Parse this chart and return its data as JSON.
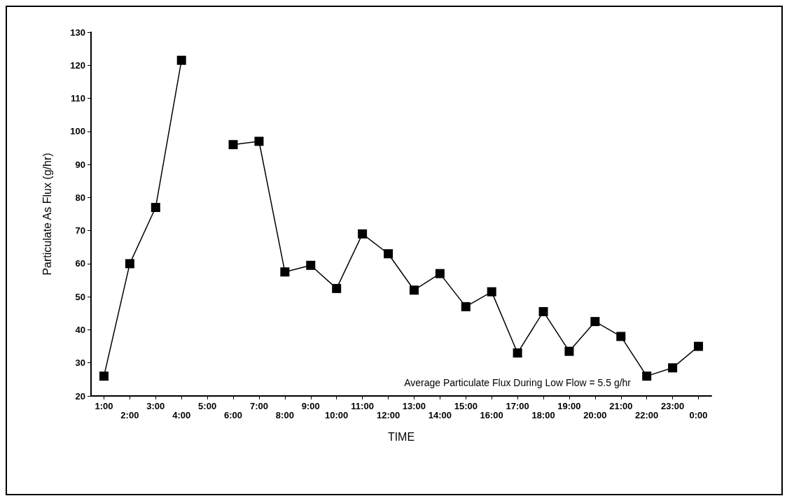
{
  "chart_data": {
    "type": "line",
    "xlabel": "TIME",
    "ylabel": "Particulate As Flux (g/hr)",
    "categories": [
      "1:00",
      "2:00",
      "3:00",
      "4:00",
      "5:00",
      "6:00",
      "7:00",
      "8:00",
      "9:00",
      "10:00",
      "11:00",
      "12:00",
      "13:00",
      "14:00",
      "15:00",
      "16:00",
      "17:00",
      "18:00",
      "19:00",
      "20:00",
      "21:00",
      "22:00",
      "23:00",
      "0:00"
    ],
    "series": [
      {
        "color": "#000000",
        "values": [
          26,
          60,
          77,
          121.5,
          null,
          96,
          97,
          57.5,
          59.5,
          52.5,
          69,
          63,
          52,
          57,
          47,
          51.5,
          33,
          45.5,
          33.5,
          42.5,
          38,
          26,
          28.5,
          35
        ]
      }
    ],
    "ylim": [
      20,
      130
    ],
    "yticks": [
      20,
      30,
      40,
      50,
      60,
      70,
      80,
      90,
      100,
      110,
      120,
      130
    ],
    "marker": "square",
    "line_style": "solid",
    "grid": false,
    "annotations": [
      "Average Particulate Flux During Low Flow = 5.5 g/hr"
    ]
  }
}
